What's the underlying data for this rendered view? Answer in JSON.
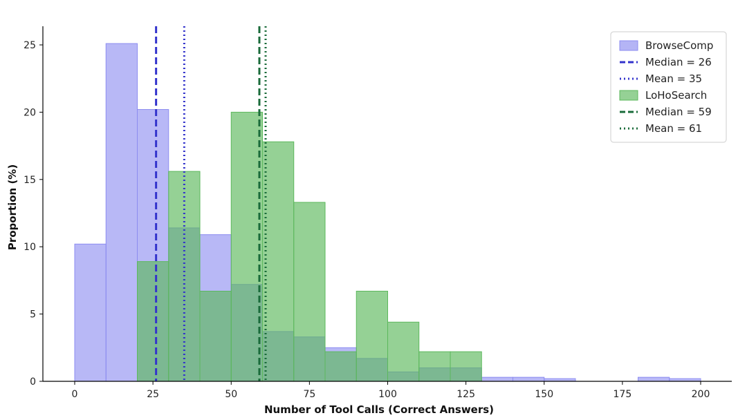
{
  "chart_data": {
    "type": "bar",
    "xlabel": "Number of Tool Calls (Correct Answers)",
    "ylabel": "Proportion (%)",
    "xlim": [
      -10,
      210
    ],
    "ylim": [
      0,
      26.5
    ],
    "xticks": [
      0,
      25,
      50,
      75,
      100,
      125,
      150,
      175,
      200
    ],
    "yticks": [
      0,
      5,
      10,
      15,
      20,
      25
    ],
    "bin_width": 10,
    "grid": false,
    "legend_position": "top-right",
    "series": [
      {
        "name": "BrowseComp",
        "color": "#8c8cf0",
        "bins": [
          0,
          10,
          20,
          30,
          40,
          50,
          60,
          70,
          80,
          90,
          100,
          110,
          120,
          130,
          140,
          150,
          160,
          170,
          180,
          190
        ],
        "values": [
          10.2,
          25.1,
          20.2,
          11.4,
          10.9,
          7.2,
          3.7,
          3.3,
          2.5,
          1.7,
          0.7,
          1.0,
          1.0,
          0.3,
          0.3,
          0.2,
          0,
          0,
          0.3,
          0.2
        ]
      },
      {
        "name": "LoHoSearch",
        "color": "#5cb85c",
        "bins": [
          20,
          30,
          40,
          50,
          60,
          70,
          80,
          90,
          100,
          110,
          120
        ],
        "values": [
          8.9,
          15.6,
          6.7,
          20.0,
          17.8,
          13.3,
          2.2,
          6.7,
          4.4,
          2.2,
          2.2
        ]
      }
    ],
    "reference_lines": [
      {
        "label": "Median = 26",
        "x": 26,
        "style": "dashed",
        "color": "#3333cc"
      },
      {
        "label": "Mean = 35",
        "x": 35,
        "style": "dotted",
        "color": "#3333cc"
      },
      {
        "label": "Median = 59",
        "x": 59,
        "style": "dashed",
        "color": "#1a6b3a"
      },
      {
        "label": "Mean = 61",
        "x": 61,
        "style": "dotted",
        "color": "#1a6b3a"
      }
    ],
    "legend": [
      {
        "kind": "patch",
        "series": 0,
        "label": "BrowseComp"
      },
      {
        "kind": "line",
        "ref": 0,
        "label": "Median = 26"
      },
      {
        "kind": "line",
        "ref": 1,
        "label": "Mean = 35"
      },
      {
        "kind": "patch",
        "series": 1,
        "label": "LoHoSearch"
      },
      {
        "kind": "line",
        "ref": 2,
        "label": "Median = 59"
      },
      {
        "kind": "line",
        "ref": 3,
        "label": "Mean = 61"
      }
    ]
  }
}
